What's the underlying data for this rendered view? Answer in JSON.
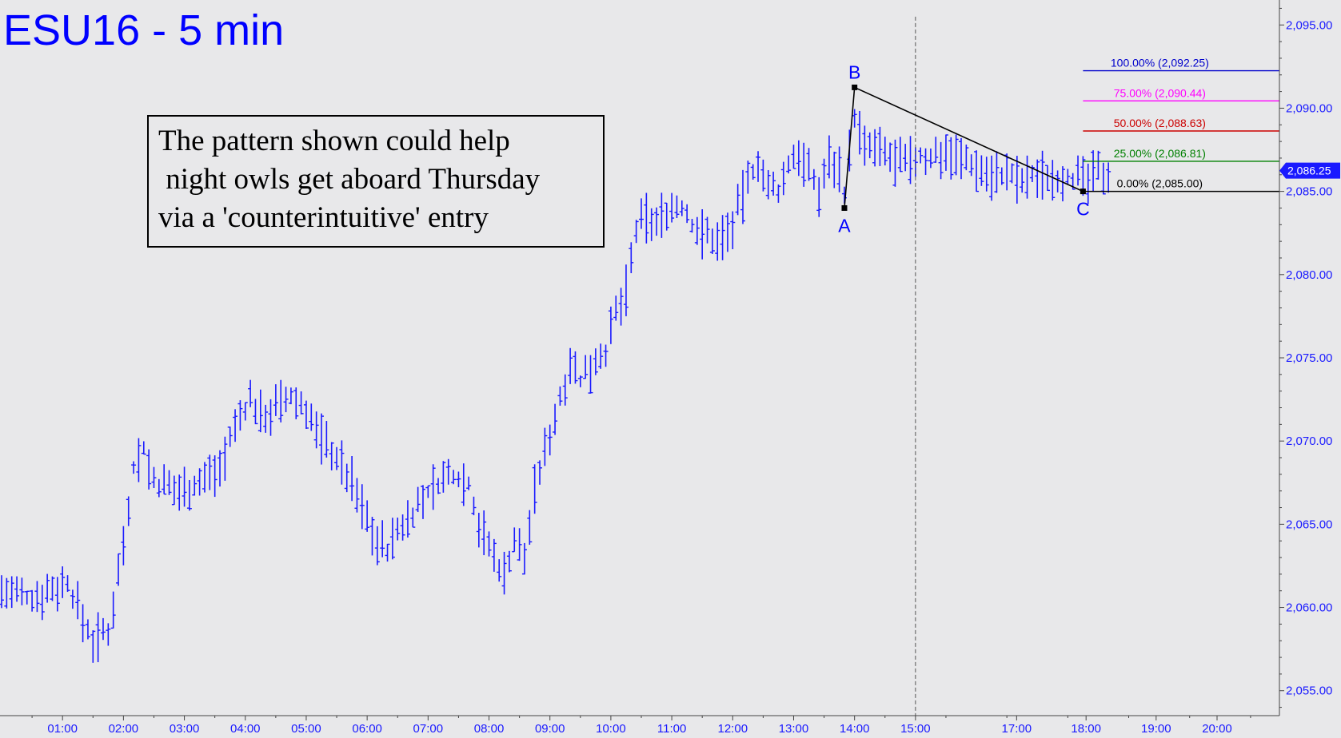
{
  "chart_data": {
    "type": "ohlc",
    "title": "ESU16 - 5 min",
    "annotation": [
      "The pattern shown could help",
      " night owls get aboard Thursday",
      "via a 'counterintuitive' entry"
    ],
    "x_ticks": [
      "01:00",
      "02:00",
      "03:00",
      "04:00",
      "05:00",
      "06:00",
      "07:00",
      "08:00",
      "09:00",
      "10:00",
      "11:00",
      "12:00",
      "13:00",
      "14:00",
      "15:00",
      "17:00",
      "18:00",
      "19:00",
      "20:00"
    ],
    "y_ticks": [
      "2,055.00",
      "2,060.00",
      "2,065.00",
      "2,070.00",
      "2,075.00",
      "2,080.00",
      "2,085.00",
      "2,090.00",
      "2,095.00"
    ],
    "ylim": [
      2053.5,
      2096.5
    ],
    "last_price": 2086.25,
    "last_price_label": "2,086.25",
    "session_divider_x": "15:00",
    "pattern": [
      {
        "label": "A",
        "x": "13:50",
        "y": 2084.0
      },
      {
        "label": "B",
        "x": "14:00",
        "y": 2091.25
      },
      {
        "label": "C",
        "x": "17:45",
        "y": 2085.0
      }
    ],
    "fib_levels": [
      {
        "label": "100.00% (2,092.25)",
        "value": 2092.25,
        "color": "#0000cc"
      },
      {
        "label": "75.00% (2,090.44)",
        "value": 2090.44,
        "color": "#ff00ff"
      },
      {
        "label": "50.00% (2,088.63)",
        "value": 2088.63,
        "color": "#cc0000"
      },
      {
        "label": "25.00% (2,086.81)",
        "value": 2086.81,
        "color": "#008000"
      },
      {
        "label": "0.00% (2,085.00)",
        "value": 2085.0,
        "color": "#000000"
      }
    ],
    "anchors": [
      [
        "00:00",
        2061.0
      ],
      [
        "00:25",
        2060.5
      ],
      [
        "00:45",
        2061.0
      ],
      [
        "01:05",
        2061.5
      ],
      [
        "01:15",
        2060.0
      ],
      [
        "01:30",
        2058.0
      ],
      [
        "01:45",
        2058.5
      ],
      [
        "02:00",
        2064.0
      ],
      [
        "02:10",
        2068.5
      ],
      [
        "02:20",
        2069.5
      ],
      [
        "02:30",
        2067.5
      ],
      [
        "02:50",
        2067.0
      ],
      [
        "03:15",
        2067.5
      ],
      [
        "03:35",
        2068.5
      ],
      [
        "03:55",
        2071.5
      ],
      [
        "04:05",
        2072.5
      ],
      [
        "04:15",
        2071.5
      ],
      [
        "04:30",
        2072.0
      ],
      [
        "04:45",
        2072.5
      ],
      [
        "05:00",
        2072.0
      ],
      [
        "05:10",
        2070.5
      ],
      [
        "05:25",
        2069.5
      ],
      [
        "05:45",
        2067.5
      ],
      [
        "05:55",
        2066.0
      ],
      [
        "06:10",
        2064.0
      ],
      [
        "06:20",
        2063.5
      ],
      [
        "06:35",
        2065.0
      ],
      [
        "06:55",
        2066.5
      ],
      [
        "07:10",
        2067.5
      ],
      [
        "07:25",
        2068.0
      ],
      [
        "07:40",
        2067.5
      ],
      [
        "07:50",
        2065.0
      ],
      [
        "08:05",
        2063.0
      ],
      [
        "08:15",
        2062.0
      ],
      [
        "08:25",
        2064.0
      ],
      [
        "08:35",
        2063.0
      ],
      [
        "08:45",
        2067.0
      ],
      [
        "09:00",
        2070.5
      ],
      [
        "09:10",
        2072.5
      ],
      [
        "09:20",
        2075.0
      ],
      [
        "09:30",
        2073.5
      ],
      [
        "09:45",
        2075.0
      ],
      [
        "09:55",
        2075.5
      ],
      [
        "10:05",
        2077.5
      ],
      [
        "10:15",
        2079.0
      ],
      [
        "10:25",
        2082.5
      ],
      [
        "10:35",
        2083.5
      ],
      [
        "10:45",
        2083.0
      ],
      [
        "10:55",
        2084.0
      ],
      [
        "11:10",
        2084.0
      ],
      [
        "11:20",
        2083.0
      ],
      [
        "11:30",
        2082.5
      ],
      [
        "11:45",
        2082.0
      ],
      [
        "12:00",
        2083.0
      ],
      [
        "12:15",
        2085.5
      ],
      [
        "12:25",
        2087.0
      ],
      [
        "12:35",
        2085.0
      ],
      [
        "12:45",
        2085.0
      ],
      [
        "12:55",
        2086.5
      ],
      [
        "13:05",
        2087.5
      ],
      [
        "13:15",
        2086.0
      ],
      [
        "13:25",
        2085.0
      ],
      [
        "13:35",
        2087.0
      ],
      [
        "13:45",
        2086.5
      ],
      [
        "13:50",
        2085.0
      ],
      [
        "14:00",
        2089.5
      ],
      [
        "14:10",
        2087.5
      ],
      [
        "14:20",
        2087.5
      ],
      [
        "14:35",
        2087.0
      ],
      [
        "14:50",
        2086.5
      ],
      [
        "15:00",
        2087.0
      ],
      [
        "15:15",
        2087.0
      ],
      [
        "15:30",
        2087.5
      ],
      [
        "15:45",
        2087.0
      ],
      [
        "16:00",
        2086.5
      ],
      [
        "16:15",
        2086.0
      ],
      [
        "16:30",
        2086.0
      ],
      [
        "16:45",
        2085.5
      ],
      [
        "17:00",
        2086.0
      ],
      [
        "17:15",
        2086.0
      ],
      [
        "17:30",
        2086.0
      ],
      [
        "17:45",
        2085.5
      ],
      [
        "18:00",
        2086.0
      ],
      [
        "18:10",
        2086.25
      ]
    ]
  }
}
